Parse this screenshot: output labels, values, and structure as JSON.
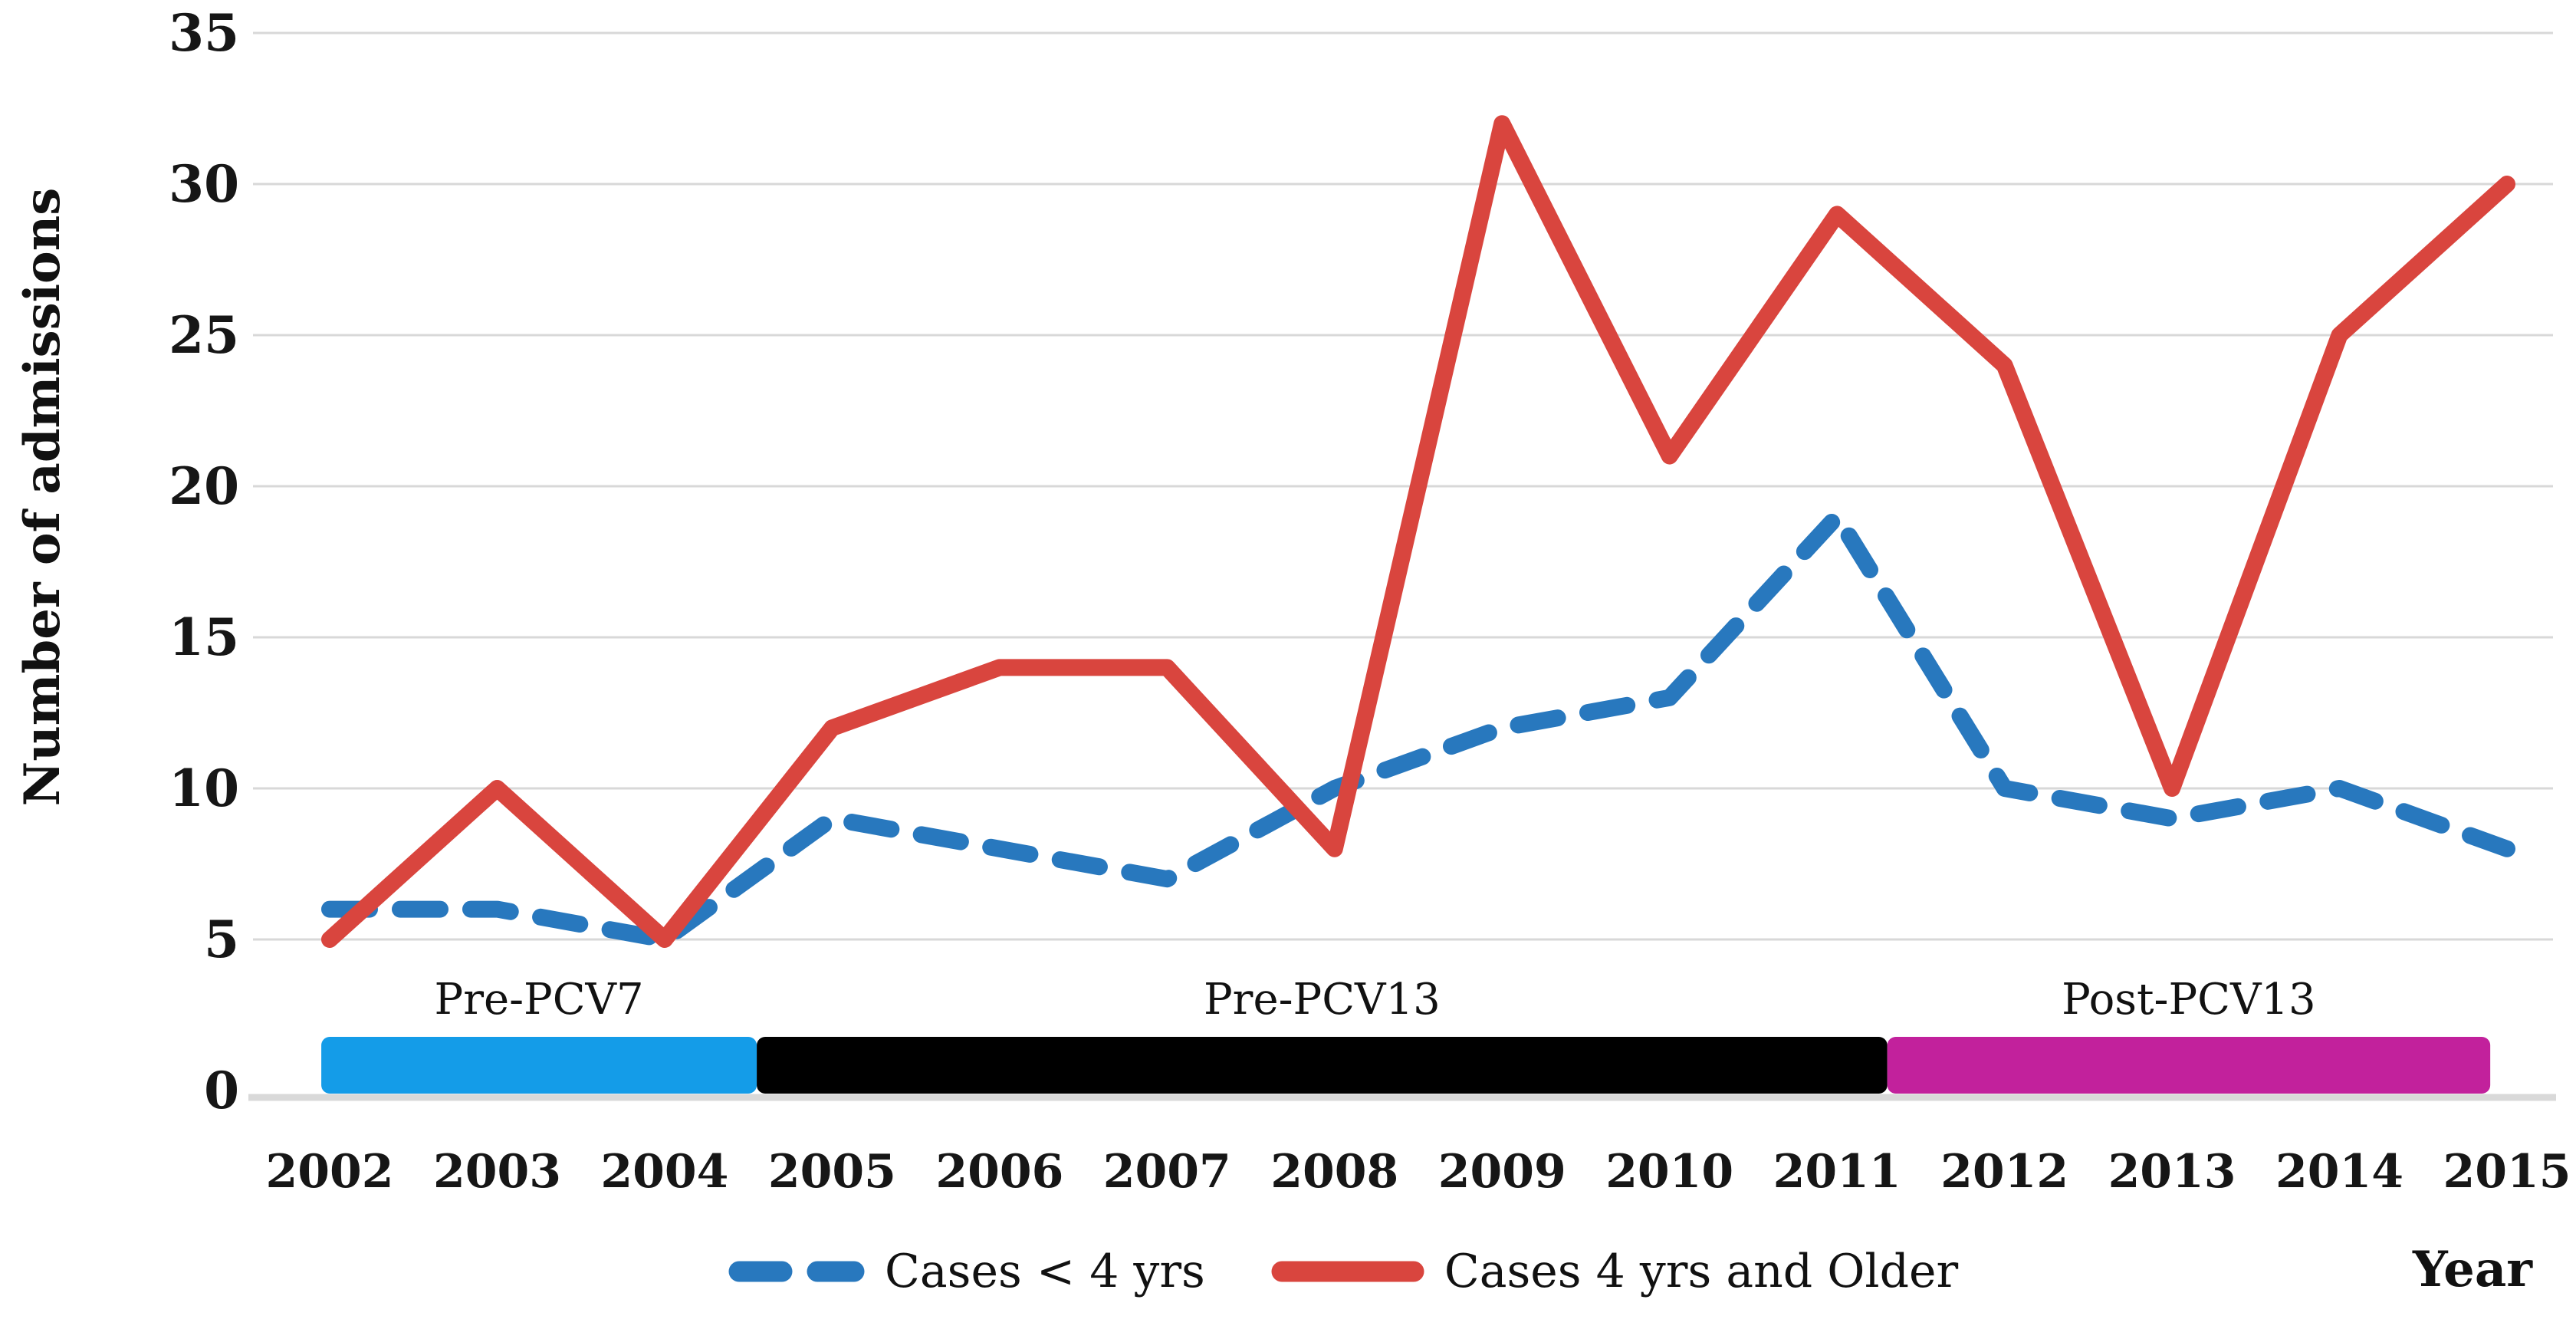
{
  "chart_data": {
    "type": "line",
    "title": "",
    "xlabel": "Year",
    "ylabel": "Number of admissions",
    "x": [
      2002,
      2003,
      2004,
      2005,
      2006,
      2007,
      2008,
      2009,
      2010,
      2011,
      2012,
      2013,
      2014,
      2015
    ],
    "yticks": [
      0,
      5,
      10,
      15,
      20,
      25,
      30,
      35
    ],
    "ylim": [
      0,
      35
    ],
    "grid": true,
    "legend_position": "bottom",
    "series": [
      {
        "name": "Cases < 4 yrs",
        "style": "dashed",
        "color": "#2878BE",
        "values": [
          6,
          6,
          5,
          9,
          8,
          7,
          10,
          12,
          13,
          19,
          10,
          9,
          10,
          8
        ]
      },
      {
        "name": "Cases 4 yrs and Older",
        "style": "solid",
        "color": "#D9453E",
        "values": [
          5,
          10,
          5,
          12,
          14,
          14,
          8,
          32,
          21,
          29,
          24,
          10,
          25,
          30
        ]
      }
    ],
    "period_bands": [
      {
        "label": "Pre-PCV7",
        "color": "#149CE8",
        "x_start": 2001.95,
        "x_end": 2004.55
      },
      {
        "label": "Pre-PCV13",
        "color": "#000000",
        "x_start": 2004.55,
        "x_end": 2011.3
      },
      {
        "label": "Post-PCV13",
        "color": "#C2219C",
        "x_start": 2011.3,
        "x_end": 2014.9
      }
    ],
    "colors": {
      "gridline": "#D8D8D8",
      "axis_line": "#D9D9D9",
      "text": "#111111"
    }
  }
}
